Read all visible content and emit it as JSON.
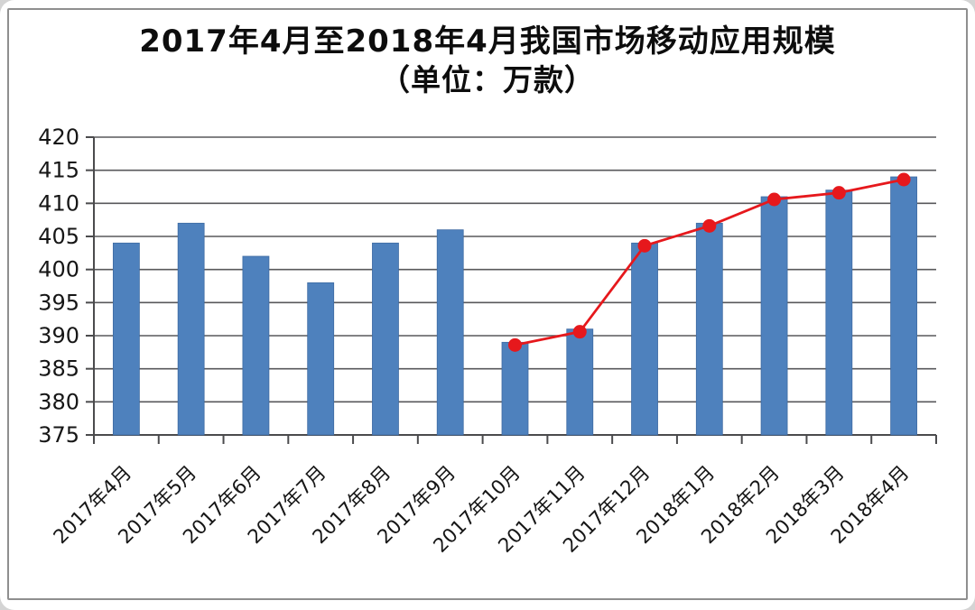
{
  "page": {
    "background": "#d4d4d4",
    "card_background": "#ffffff",
    "frame_border_color": "#8f8f8f"
  },
  "chart_data": {
    "type": "bar",
    "title": "2017年4月至2018年4月我国市场移动应用规模",
    "subtitle": "（单位：万款）",
    "categories": [
      "2017年4月",
      "2017年5月",
      "2017年6月",
      "2017年7月",
      "2017年8月",
      "2017年9月",
      "2017年10月",
      "2017年11月",
      "2017年12月",
      "2018年1月",
      "2018年2月",
      "2018年3月",
      "2018年4月"
    ],
    "bar_values": [
      404,
      407,
      402,
      398,
      404,
      406,
      389,
      391,
      404,
      407,
      411,
      412,
      414
    ],
    "line_values": [
      null,
      null,
      null,
      null,
      null,
      null,
      389,
      391,
      404,
      407,
      411,
      412,
      414
    ],
    "ylim": [
      375,
      420
    ],
    "yticks": [
      375,
      380,
      385,
      390,
      395,
      400,
      405,
      410,
      415,
      420
    ],
    "grid": true,
    "legend": "none",
    "colors": {
      "bar": "#4e81bd",
      "bar_edge": "#3f6ba3",
      "line": "#e6181c",
      "grid": "#58585b",
      "axis": "#4b4b4d",
      "text": "#161616"
    }
  }
}
